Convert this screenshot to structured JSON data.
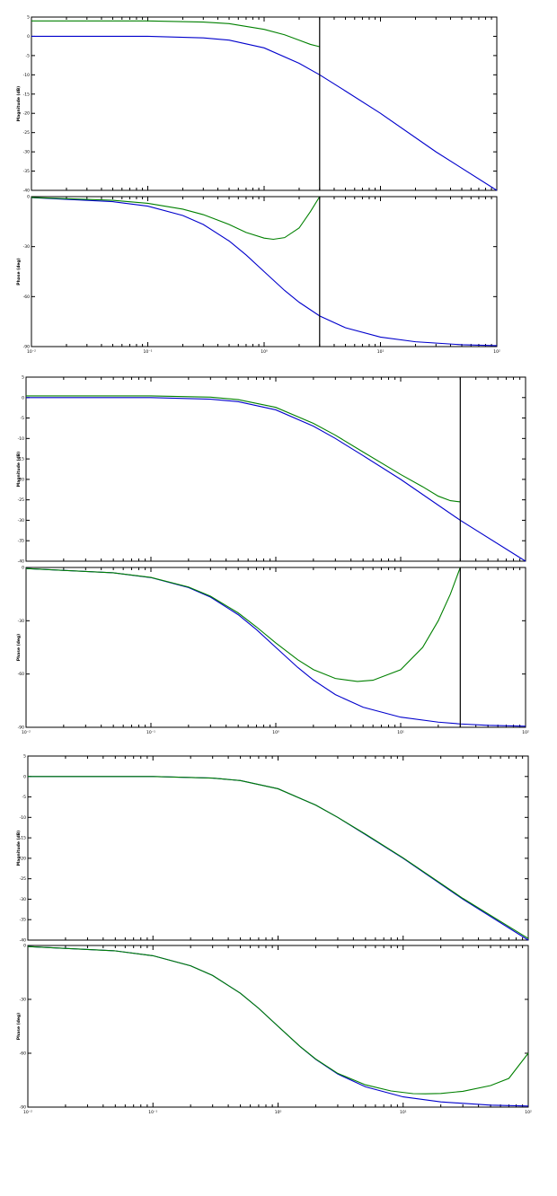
{
  "chart_data": [
    {
      "type": "line",
      "panel": "bode-1-magnitude",
      "ylabel": "Magnitude (dB)",
      "xscale": "log",
      "xlim": [
        0.01,
        100
      ],
      "ylim": [
        -40,
        5
      ],
      "yticks": [
        "5",
        "0",
        "-5",
        "-10",
        "-15",
        "-20",
        "-25",
        "-30",
        "-35",
        "-40"
      ],
      "ytick_values": [
        5,
        0,
        -5,
        -10,
        -15,
        -20,
        -25,
        -30,
        -35,
        -40
      ],
      "marker_x": 3,
      "series": [
        {
          "color": "#0000cc",
          "x": [
            0.01,
            0.1,
            0.3,
            0.5,
            1,
            2,
            3,
            5,
            10,
            30,
            100
          ],
          "y": [
            0,
            0,
            -0.4,
            -1,
            -3,
            -7,
            -10,
            -14.2,
            -20,
            -30,
            -40
          ]
        },
        {
          "color": "#008000",
          "x": [
            0.01,
            0.1,
            0.3,
            0.5,
            1,
            1.5,
            2,
            2.5,
            3
          ],
          "y": [
            4,
            4,
            3.7,
            3.3,
            1.8,
            0.4,
            -1,
            -2.1,
            -2.7
          ]
        }
      ]
    },
    {
      "type": "line",
      "panel": "bode-1-phase",
      "ylabel": "Phase (deg)",
      "xscale": "log",
      "xlim": [
        0.01,
        100
      ],
      "ylim": [
        -90,
        0
      ],
      "yticks": [
        "0",
        "-30",
        "-60",
        "-90"
      ],
      "ytick_values": [
        0,
        -30,
        -60,
        -90
      ],
      "xticks": [
        "10⁻²",
        "10⁻¹",
        "10⁰",
        "10¹",
        "10²"
      ],
      "xtick_values": [
        0.01,
        0.1,
        1,
        10,
        100
      ],
      "marker_x": 3,
      "series": [
        {
          "color": "#0000cc",
          "x": [
            0.01,
            0.05,
            0.1,
            0.2,
            0.3,
            0.5,
            0.7,
            1,
            1.5,
            2,
            3,
            5,
            10,
            20,
            50,
            100
          ],
          "y": [
            -0.6,
            -3,
            -5.7,
            -11.3,
            -16.7,
            -26.6,
            -35,
            -45,
            -56.3,
            -63.4,
            -71.6,
            -78.7,
            -84.3,
            -87.1,
            -88.9,
            -89.4
          ]
        },
        {
          "color": "#008000",
          "x": [
            0.01,
            0.05,
            0.1,
            0.2,
            0.3,
            0.5,
            0.7,
            1,
            1.2,
            1.5,
            2,
            2.5,
            3
          ],
          "y": [
            -0.5,
            -2.2,
            -4,
            -7.5,
            -10.8,
            -16.7,
            -21.5,
            -24.9,
            -25.6,
            -24.6,
            -18.8,
            -9,
            0
          ]
        }
      ]
    },
    {
      "type": "line",
      "panel": "bode-2-magnitude",
      "ylabel": "Magnitude (dB)",
      "xscale": "log",
      "xlim": [
        0.01,
        100
      ],
      "ylim": [
        -40,
        5
      ],
      "yticks": [
        "5",
        "0",
        "-5",
        "-10",
        "-15",
        "-20",
        "-25",
        "-30",
        "-35",
        "-40"
      ],
      "ytick_values": [
        5,
        0,
        -5,
        -10,
        -15,
        -20,
        -25,
        -30,
        -35,
        -40
      ],
      "marker_x": 30,
      "series": [
        {
          "color": "#0000cc",
          "x": [
            0.01,
            0.1,
            0.3,
            0.5,
            1,
            2,
            3,
            5,
            10,
            30,
            100
          ],
          "y": [
            0,
            0,
            -0.4,
            -1,
            -3,
            -7,
            -10,
            -14.2,
            -20,
            -30,
            -40
          ]
        },
        {
          "color": "#008000",
          "x": [
            0.01,
            0.1,
            0.3,
            0.5,
            1,
            2,
            3,
            5,
            10,
            15,
            20,
            25,
            30
          ],
          "y": [
            0.4,
            0.4,
            0.1,
            -0.5,
            -2.4,
            -6.3,
            -9.2,
            -13.3,
            -18.8,
            -21.8,
            -24.1,
            -25.2,
            -25.5
          ]
        }
      ]
    },
    {
      "type": "line",
      "panel": "bode-2-phase",
      "ylabel": "Phase (deg)",
      "xscale": "log",
      "xlim": [
        0.01,
        100
      ],
      "ylim": [
        -90,
        0
      ],
      "yticks": [
        "0",
        "-30",
        "-60",
        "-90"
      ],
      "ytick_values": [
        0,
        -30,
        -60,
        -90
      ],
      "xticks": [
        "10⁻²",
        "10⁻¹",
        "10⁰",
        "10¹",
        "10²"
      ],
      "xtick_values": [
        0.01,
        0.1,
        1,
        10,
        100
      ],
      "marker_x": 30,
      "series": [
        {
          "color": "#0000cc",
          "x": [
            0.01,
            0.05,
            0.1,
            0.2,
            0.3,
            0.5,
            0.7,
            1,
            1.5,
            2,
            3,
            5,
            10,
            20,
            30,
            50,
            100
          ],
          "y": [
            -0.6,
            -3,
            -5.7,
            -11.3,
            -16.7,
            -26.6,
            -35,
            -45,
            -56.3,
            -63.4,
            -71.6,
            -78.7,
            -84.3,
            -87.1,
            -88.1,
            -88.9,
            -89.4
          ]
        },
        {
          "color": "#008000",
          "x": [
            0.01,
            0.05,
            0.1,
            0.2,
            0.3,
            0.5,
            0.7,
            1,
            1.5,
            2,
            3,
            4.5,
            6,
            10,
            15,
            20,
            25,
            30
          ],
          "y": [
            -0.6,
            -3,
            -5.6,
            -11,
            -16.2,
            -25.6,
            -33.5,
            -42.5,
            -52,
            -57.5,
            -62.5,
            -64.2,
            -63.5,
            -57.6,
            -45,
            -30,
            -15,
            0
          ]
        }
      ]
    },
    {
      "type": "line",
      "panel": "bode-3-magnitude",
      "ylabel": "Magnitude (dB)",
      "xscale": "log",
      "xlim": [
        0.01,
        100
      ],
      "ylim": [
        -40,
        5
      ],
      "yticks": [
        "5",
        "0",
        "-5",
        "-10",
        "-15",
        "-20",
        "-25",
        "-30",
        "-35",
        "-40"
      ],
      "ytick_values": [
        5,
        0,
        -5,
        -10,
        -15,
        -20,
        -25,
        -30,
        -35,
        -40
      ],
      "series": [
        {
          "color": "#0000cc",
          "x": [
            0.01,
            0.1,
            0.3,
            0.5,
            1,
            2,
            3,
            5,
            10,
            30,
            100
          ],
          "y": [
            0,
            0,
            -0.4,
            -1,
            -3,
            -7,
            -10,
            -14.2,
            -20,
            -30,
            -40
          ]
        },
        {
          "color": "#008000",
          "x": [
            0.01,
            0.1,
            0.3,
            0.5,
            1,
            2,
            3,
            5,
            10,
            30,
            100
          ],
          "y": [
            0,
            0,
            -0.4,
            -1,
            -3,
            -7,
            -10,
            -14.1,
            -19.9,
            -29.8,
            -39.6
          ]
        }
      ]
    },
    {
      "type": "line",
      "panel": "bode-3-phase",
      "ylabel": "Phase (deg)",
      "xscale": "log",
      "xlim": [
        0.01,
        100
      ],
      "ylim": [
        -90,
        0
      ],
      "yticks": [
        "0",
        "-30",
        "-60",
        "-90"
      ],
      "ytick_values": [
        0,
        -30,
        -60,
        -90
      ],
      "xticks": [
        "10⁻²",
        "10⁻¹",
        "10⁰",
        "10¹",
        "10²"
      ],
      "xtick_values": [
        0.01,
        0.1,
        1,
        10,
        100
      ],
      "series": [
        {
          "color": "#0000cc",
          "x": [
            0.01,
            0.05,
            0.1,
            0.2,
            0.3,
            0.5,
            0.7,
            1,
            1.5,
            2,
            3,
            5,
            10,
            20,
            50,
            100
          ],
          "y": [
            -0.6,
            -3,
            -5.7,
            -11.3,
            -16.7,
            -26.6,
            -35,
            -45,
            -56.3,
            -63.4,
            -71.6,
            -78.7,
            -84.3,
            -87.1,
            -88.9,
            -89.4
          ]
        },
        {
          "color": "#008000",
          "x": [
            0.01,
            0.05,
            0.1,
            0.2,
            0.3,
            0.5,
            0.7,
            1,
            1.5,
            2,
            3,
            5,
            8,
            12,
            15,
            20,
            30,
            50,
            70,
            100
          ],
          "y": [
            -0.6,
            -3,
            -5.7,
            -11.3,
            -16.7,
            -26.6,
            -35,
            -45,
            -56.2,
            -63.2,
            -71.2,
            -77.6,
            -81,
            -82.5,
            -82.6,
            -82.4,
            -81.2,
            -78,
            -74,
            -60
          ]
        }
      ]
    }
  ]
}
